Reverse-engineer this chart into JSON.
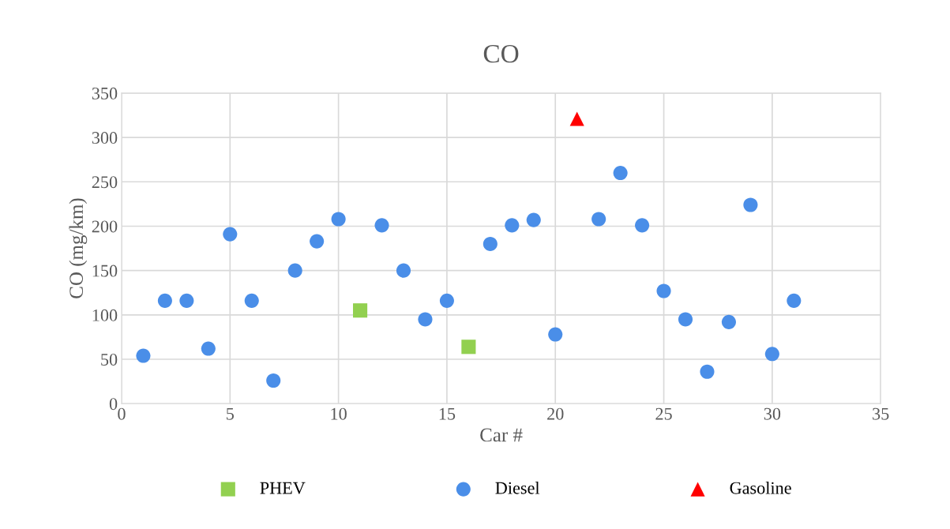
{
  "chart_data": {
    "type": "scatter",
    "title": "CO",
    "xlabel": "Car #",
    "ylabel": "CO (mg/km)",
    "xlim": [
      0,
      35
    ],
    "xticks": [
      0,
      5,
      10,
      15,
      20,
      25,
      30,
      35
    ],
    "ylim": [
      0,
      350
    ],
    "yticks": [
      0,
      50,
      100,
      150,
      200,
      250,
      300,
      350
    ],
    "grid": true,
    "legend": "bottom",
    "series": [
      {
        "name": "PHEV",
        "color": "#92d050",
        "marker": "square",
        "x": [
          11,
          16
        ],
        "values": [
          105,
          64
        ]
      },
      {
        "name": "Diesel",
        "color": "#4a8ee8",
        "marker": "circle",
        "x": [
          1,
          2,
          3,
          4,
          5,
          6,
          7,
          8,
          9,
          10,
          12,
          13,
          14,
          15,
          17,
          18,
          19,
          20,
          22,
          23,
          24,
          25,
          26,
          27,
          28,
          29,
          30,
          31
        ],
        "values": [
          54,
          116,
          116,
          62,
          191,
          116,
          26,
          150,
          183,
          208,
          201,
          150,
          95,
          116,
          180,
          201,
          207,
          78,
          208,
          260,
          201,
          127,
          95,
          36,
          92,
          224,
          56,
          116
        ]
      },
      {
        "name": "Gasoline",
        "color": "#ff0000",
        "marker": "triangle",
        "x": [
          21
        ],
        "values": [
          321
        ]
      }
    ]
  }
}
